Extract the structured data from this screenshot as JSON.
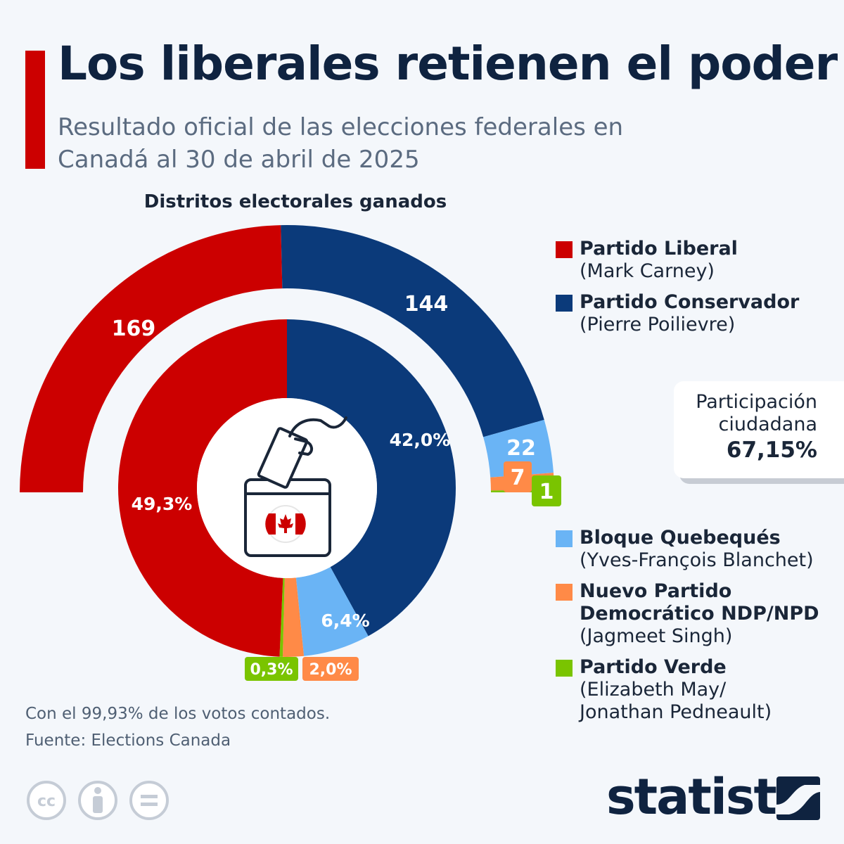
{
  "header": {
    "title": "Los liberales retienen el poder",
    "subtitle": "Resultado oficial de las elecciones federales en Canadá al 30 de abril de 2025"
  },
  "chart_data": {
    "type": "pie",
    "title": "Distritos electorales ganados",
    "outer_ring": {
      "unit": "seats",
      "categories": [
        "Partido Liberal",
        "Partido Conservador",
        "Bloque Quebequés",
        "Nuevo Partido Democrático NDP/NPD",
        "Partido Verde"
      ],
      "values": [
        169,
        144,
        22,
        7,
        1
      ],
      "labels": [
        "169",
        "144",
        "22",
        "7",
        "1"
      ]
    },
    "inner_ring": {
      "unit": "vote share %",
      "categories": [
        "Partido Liberal",
        "Partido Conservador",
        "Bloque Quebequés",
        "Nuevo Partido Democrático NDP/NPD",
        "Partido Verde"
      ],
      "values": [
        49.3,
        42.0,
        6.4,
        2.0,
        0.3
      ],
      "labels": [
        "49,3%",
        "42,0%",
        "6,4%",
        "2,0%",
        "0,3%"
      ]
    },
    "colors": [
      "#cc0000",
      "#0b3a7a",
      "#6ab4f5",
      "#ff8a47",
      "#7ac400"
    ]
  },
  "legend": {
    "items": [
      {
        "name": "Partido Liberal",
        "leader": "(Mark Carney)",
        "color": "#cc0000"
      },
      {
        "name": "Partido Conservador",
        "leader": "(Pierre Poilievre)",
        "color": "#0b3a7a"
      },
      {
        "name": "Bloque Quebequés",
        "leader": "(Yves-François Blanchet)",
        "color": "#6ab4f5"
      },
      {
        "name": "Nuevo Partido Democrático NDP/NPD",
        "leader": "(Jagmeet Singh)",
        "color": "#ff8a47"
      },
      {
        "name": "Partido Verde",
        "leader": "(Elizabeth May/ Jonathan Pedneault)",
        "color": "#7ac400"
      }
    ]
  },
  "turnout": {
    "label": "Participación ciudadana",
    "value": "67,15%"
  },
  "notes": {
    "counted": "Con el 99,93% de los votos contados.",
    "source": "Fuente: Elections Canada"
  },
  "icons": {
    "ballot": "ballot-box-hand-icon",
    "flag": "canada-flag-icon",
    "licenses": [
      "cc-icon",
      "attribution-icon",
      "no-derivatives-icon"
    ]
  },
  "brand": {
    "logo": "statista"
  }
}
